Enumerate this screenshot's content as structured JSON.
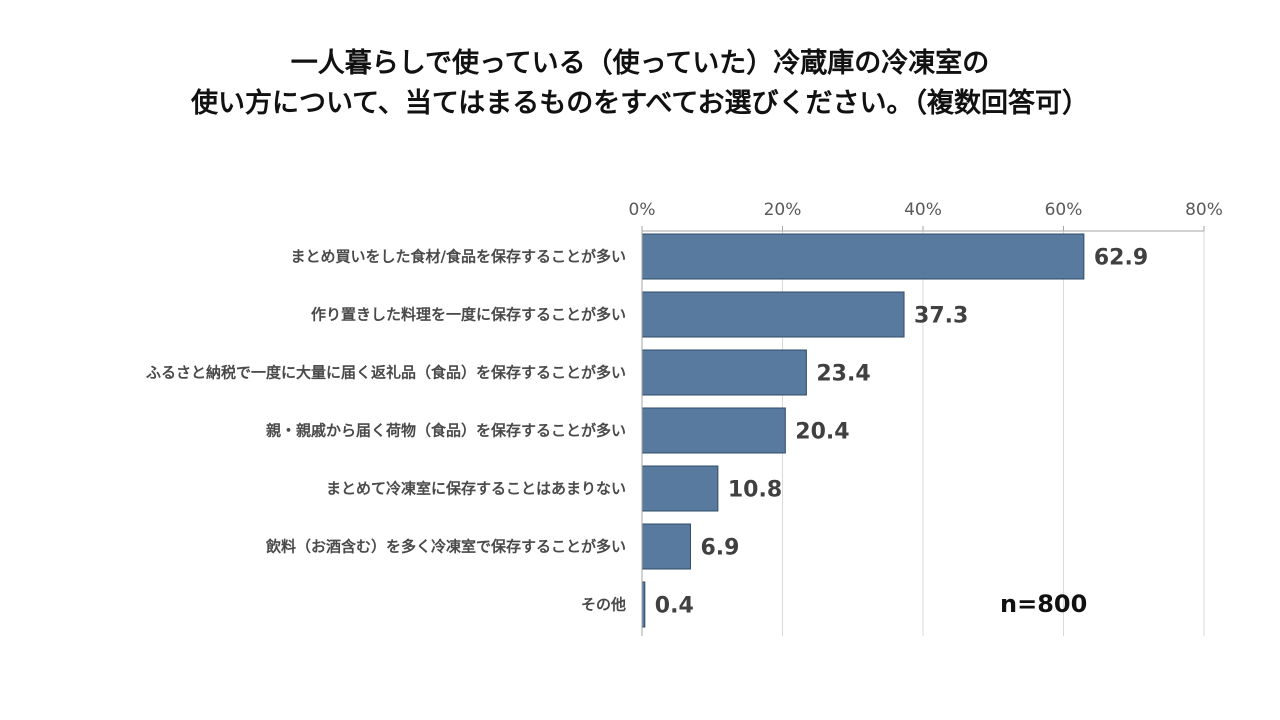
{
  "title_lines": [
    "一人暮らしで使っている（使っていた）冷蔵庫の冷凍室の",
    "使い方について、当てはまるものをすべてお選びください。（複数回答可）"
  ],
  "sample_size": "n=800",
  "chart_data": {
    "type": "bar",
    "orientation": "horizontal",
    "categories": [
      "まとめ買いをした食材/食品を保存することが多い",
      "作り置きした料理を一度に保存することが多い",
      "ふるさと納税で一度に大量に届く返礼品（食品）を保存することが多い",
      "親・親戚から届く荷物（食品）を保存することが多い",
      "まとめて冷凍室に保存することはあまりない",
      "飲料（お酒含む）を多く冷凍室で保存することが多い",
      "その他"
    ],
    "values": [
      62.9,
      37.3,
      23.4,
      20.4,
      10.8,
      6.9,
      0.4
    ],
    "value_labels": [
      "62.9",
      "37.3",
      "23.4",
      "20.4",
      "10.8",
      "6.9",
      "0.4"
    ],
    "xlim": [
      0,
      80
    ],
    "ticks": [
      0,
      20,
      40,
      60,
      80
    ],
    "tick_labels": [
      "0%",
      "20%",
      "40%",
      "60%",
      "80%"
    ],
    "axis_position": "top",
    "grid": true,
    "bar_color": "#587a9e",
    "bar_edge_color": "#2f4a6a"
  }
}
